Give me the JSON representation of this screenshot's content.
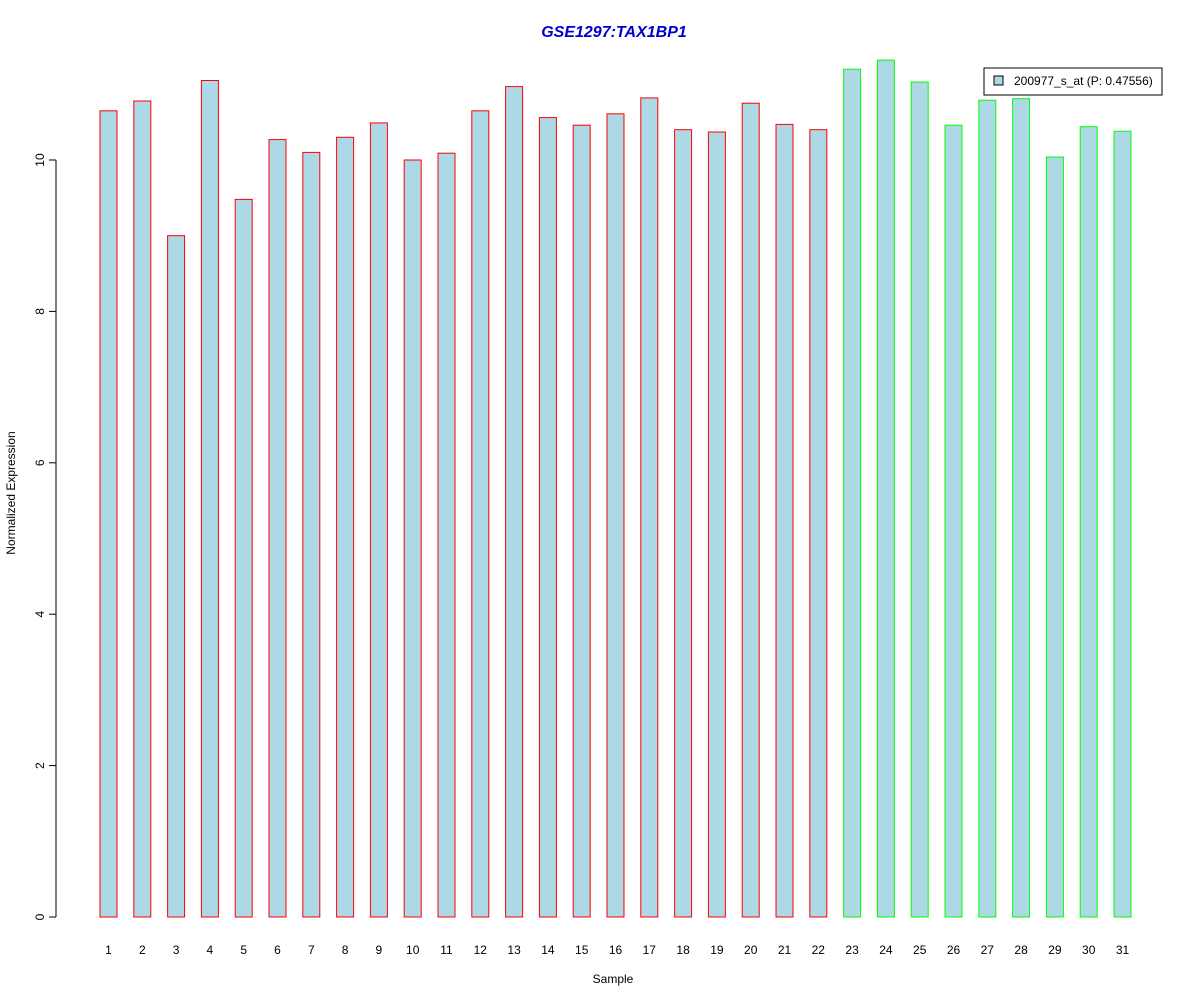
{
  "chart_data": {
    "type": "bar",
    "title": "GSE1297:TAX1BP1",
    "xlabel": "Sample",
    "ylabel": "Normalized Expression",
    "categories": [
      "1",
      "2",
      "3",
      "4",
      "5",
      "6",
      "7",
      "8",
      "9",
      "10",
      "11",
      "12",
      "13",
      "14",
      "15",
      "16",
      "17",
      "18",
      "19",
      "20",
      "21",
      "22",
      "23",
      "24",
      "25",
      "26",
      "27",
      "28",
      "29",
      "30",
      "31"
    ],
    "values": [
      10.65,
      10.78,
      9.0,
      11.05,
      9.48,
      10.27,
      10.1,
      10.3,
      10.49,
      10.0,
      10.09,
      10.65,
      10.97,
      10.56,
      10.46,
      10.61,
      10.82,
      10.4,
      10.37,
      10.75,
      10.47,
      10.4,
      11.2,
      11.32,
      11.03,
      10.46,
      10.79,
      10.81,
      10.04,
      10.44,
      10.38
    ],
    "groups": [
      {
        "samples": [
          1,
          22
        ],
        "border_color": "#ff0000"
      },
      {
        "samples": [
          23,
          31
        ],
        "border_color": "#00ff00"
      }
    ],
    "yticks": [
      0,
      2,
      4,
      6,
      8,
      10
    ],
    "ylim": [
      0,
      11.4
    ],
    "grid": false,
    "legend": {
      "label": "200977_s_at (P: 0.47556)",
      "placement": "top-right"
    },
    "colors": {
      "bar_fill": "#add8e6",
      "title": "#0000cc",
      "axis": "#000000"
    }
  }
}
